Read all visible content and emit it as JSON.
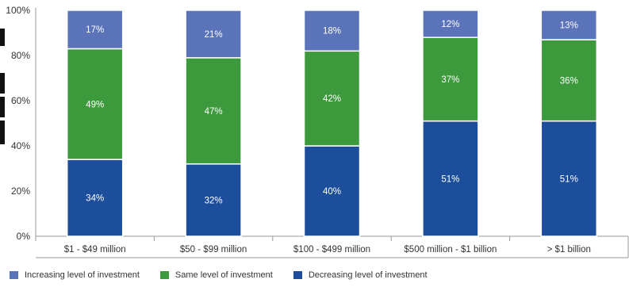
{
  "chart_data": {
    "type": "bar",
    "stacked": true,
    "categories": [
      "$1 - $49 million",
      "$50 - $99 million",
      "$100 - $499 million",
      "$500 million - $1 billion",
      "> $1 billion"
    ],
    "series": [
      {
        "name": "Decreasing level of investment",
        "values": [
          34,
          32,
          40,
          51,
          51
        ],
        "color": "#1c4e9c",
        "labels": [
          "34%",
          "32%",
          "40%",
          "51%",
          "51%"
        ]
      },
      {
        "name": "Same level of investment",
        "values": [
          49,
          47,
          42,
          37,
          36
        ],
        "color": "#3c9a3c",
        "labels": [
          "49%",
          "47%",
          "42%",
          "37%",
          "36%"
        ]
      },
      {
        "name": "Increasing level of investment",
        "values": [
          17,
          21,
          18,
          12,
          13
        ],
        "color": "#5b73b8",
        "labels": [
          "17%",
          "21%",
          "18%",
          "12%",
          "13%"
        ]
      }
    ],
    "ylim": [
      0,
      100
    ],
    "yticks": [
      "0%",
      "20%",
      "40%",
      "60%",
      "80%",
      "100%"
    ],
    "legend_position": "bottom",
    "grid": false
  },
  "legend": {
    "items": [
      {
        "label": "Increasing level of investment",
        "color": "#5b73b8"
      },
      {
        "label": "Same level of investment",
        "color": "#3c9a3c"
      },
      {
        "label": "Decreasing level of investment",
        "color": "#1c4e9c"
      }
    ]
  }
}
